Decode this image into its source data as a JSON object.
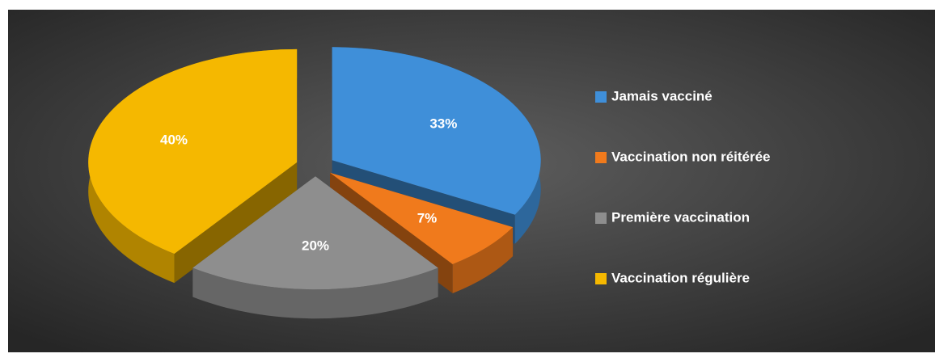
{
  "chart_data": {
    "type": "pie",
    "categories": [
      "Jamais vacciné",
      "Vaccination non réitérée",
      "Première vaccination",
      "Vaccination régulière"
    ],
    "values": [
      33,
      7,
      20,
      40
    ],
    "value_labels": [
      "33%",
      "7%",
      "20%",
      "40%"
    ],
    "colors": [
      "#3f8fd9",
      "#f07a1c",
      "#8e8e8e",
      "#f5b800"
    ],
    "legend": "right"
  }
}
